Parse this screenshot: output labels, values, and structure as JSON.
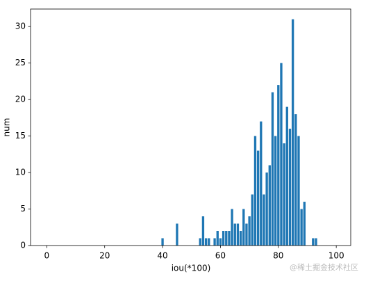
{
  "chart_data": {
    "type": "bar",
    "xlabel": "iou(*100)",
    "ylabel": "num",
    "watermark": "@稀土掘金技术社区",
    "x": [
      40,
      45,
      53,
      54,
      55,
      56,
      58,
      59,
      60,
      61,
      62,
      63,
      64,
      65,
      66,
      67,
      68,
      69,
      70,
      71,
      72,
      73,
      74,
      75,
      76,
      77,
      78,
      79,
      80,
      81,
      82,
      83,
      84,
      85,
      86,
      87,
      88,
      89,
      92,
      93
    ],
    "values": [
      1,
      3,
      1,
      4,
      1,
      1,
      1,
      2,
      1,
      2,
      2,
      2,
      5,
      3,
      3,
      2,
      5,
      3,
      4,
      7,
      15,
      13,
      17,
      7,
      10,
      11,
      21,
      15,
      22,
      25,
      14,
      19,
      16,
      31,
      18,
      15,
      5,
      6,
      1,
      1
    ],
    "color": "#1f77b4",
    "xlim": [
      -5.6,
      105
    ],
    "xticks": [
      0,
      20,
      40,
      60,
      80,
      100
    ],
    "ylim": [
      0,
      32.4
    ],
    "yticks": [
      0,
      5,
      10,
      15,
      20,
      25,
      30
    ]
  }
}
